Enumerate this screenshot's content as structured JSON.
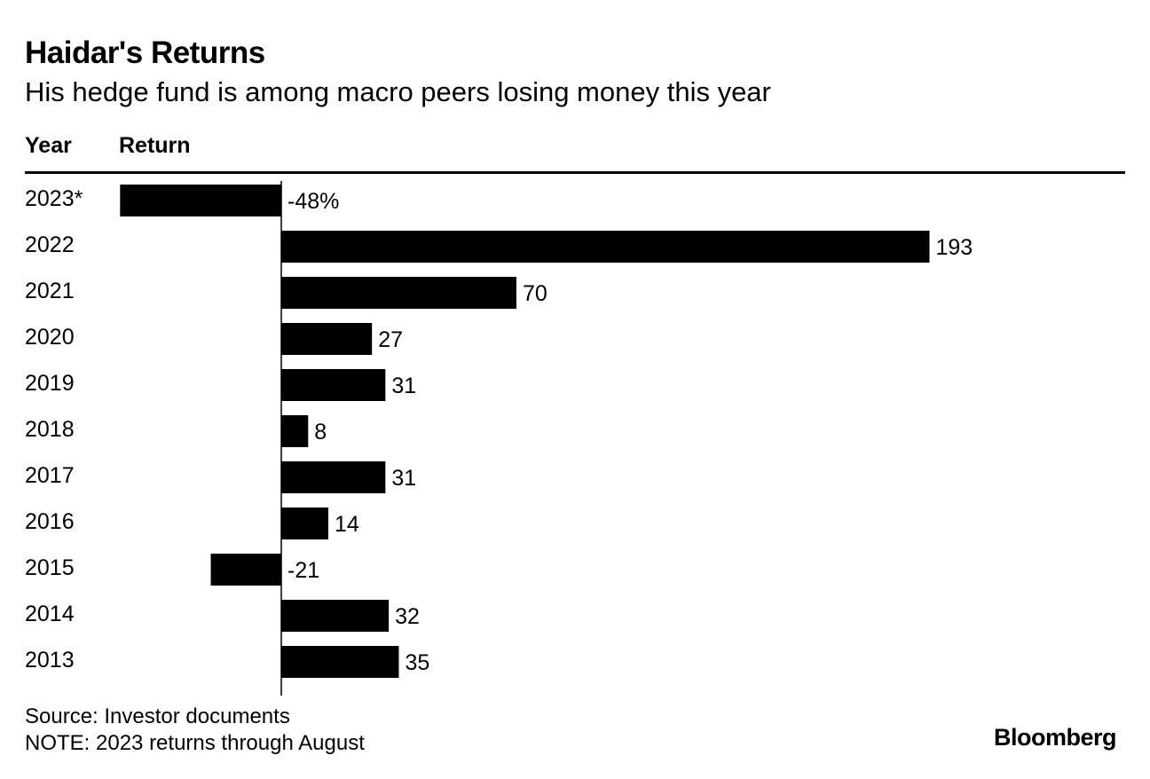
{
  "chart_data": {
    "type": "bar",
    "orientation": "horizontal",
    "title": "Haidar's Returns",
    "subtitle": "His hedge fund is among macro peers losing money this year",
    "columns": [
      "Year",
      "Return"
    ],
    "categories": [
      "2023*",
      "2022",
      "2021",
      "2020",
      "2019",
      "2018",
      "2017",
      "2016",
      "2015",
      "2014",
      "2013"
    ],
    "values": [
      -48,
      193,
      70,
      27,
      31,
      8,
      31,
      14,
      -21,
      32,
      35
    ],
    "value_labels": [
      "-48%",
      "193",
      "70",
      "27",
      "31",
      "8",
      "31",
      "14",
      "-21",
      "32",
      "35"
    ],
    "xlim": [
      -48,
      193
    ],
    "bar_color": "#000000",
    "grid": false,
    "legend": "none"
  },
  "footer": {
    "source": "Source: Investor documents",
    "note": "NOTE: 2023 returns through August"
  },
  "brand": {
    "name": "Bloomberg"
  }
}
